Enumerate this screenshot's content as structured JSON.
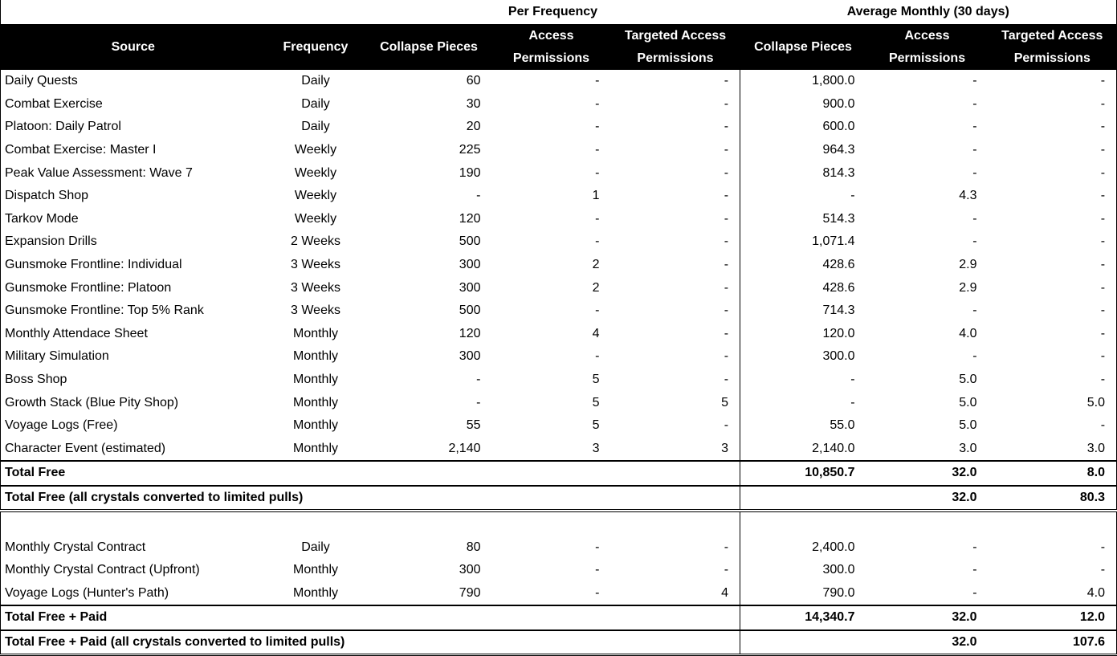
{
  "groups": {
    "per_frequency": "Per Frequency",
    "average_monthly": "Average Monthly (30 days)"
  },
  "headers": [
    "Source",
    "Frequency",
    "Collapse Pieces",
    "Access Permissions",
    "Targeted Access Permissions",
    "Collapse Pieces",
    "Access Permissions",
    "Targeted Access Permissions"
  ],
  "free_rows": [
    [
      "Daily Quests",
      "Daily",
      "60",
      "-",
      "-",
      "1,800.0",
      "-",
      "-"
    ],
    [
      "Combat Exercise",
      "Daily",
      "30",
      "-",
      "-",
      "900.0",
      "-",
      "-"
    ],
    [
      "Platoon: Daily Patrol",
      "Daily",
      "20",
      "-",
      "-",
      "600.0",
      "-",
      "-"
    ],
    [
      "Combat Exercise: Master I",
      "Weekly",
      "225",
      "-",
      "-",
      "964.3",
      "-",
      "-"
    ],
    [
      "Peak Value Assessment: Wave 7",
      "Weekly",
      "190",
      "-",
      "-",
      "814.3",
      "-",
      "-"
    ],
    [
      "Dispatch Shop",
      "Weekly",
      "-",
      "1",
      "-",
      "-",
      "4.3",
      "-"
    ],
    [
      "Tarkov Mode",
      "Weekly",
      "120",
      "-",
      "-",
      "514.3",
      "-",
      "-"
    ],
    [
      "Expansion Drills",
      "2 Weeks",
      "500",
      "-",
      "-",
      "1,071.4",
      "-",
      "-"
    ],
    [
      "Gunsmoke Frontline: Individual",
      "3 Weeks",
      "300",
      "2",
      "-",
      "428.6",
      "2.9",
      "-"
    ],
    [
      "Gunsmoke Frontline: Platoon",
      "3 Weeks",
      "300",
      "2",
      "-",
      "428.6",
      "2.9",
      "-"
    ],
    [
      "Gunsmoke Frontline: Top 5% Rank",
      "3 Weeks",
      "500",
      "-",
      "-",
      "714.3",
      "-",
      "-"
    ],
    [
      "Monthly Attendace Sheet",
      "Monthly",
      "120",
      "4",
      "-",
      "120.0",
      "4.0",
      "-"
    ],
    [
      "Military Simulation",
      "Monthly",
      "300",
      "-",
      "-",
      "300.0",
      "-",
      "-"
    ],
    [
      "Boss Shop",
      "Monthly",
      "-",
      "5",
      "-",
      "-",
      "5.0",
      "-"
    ],
    [
      "Growth Stack (Blue Pity Shop)",
      "Monthly",
      "-",
      "5",
      "5",
      "-",
      "5.0",
      "5.0"
    ],
    [
      "Voyage Logs (Free)",
      "Monthly",
      "55",
      "5",
      "-",
      "55.0",
      "5.0",
      "-"
    ],
    [
      "Character Event (estimated)",
      "Monthly",
      "2,140",
      "3",
      "3",
      "2,140.0",
      "3.0",
      "3.0"
    ]
  ],
  "free_totals": [
    [
      "Total Free",
      "",
      "",
      "",
      "",
      "10,850.7",
      "32.0",
      "8.0"
    ],
    [
      "Total Free (all crystals converted to limited pulls)",
      "",
      "",
      "",
      "",
      "",
      "32.0",
      "80.3"
    ]
  ],
  "paid_rows": [
    [
      "Monthly Crystal Contract",
      "Daily",
      "80",
      "-",
      "-",
      "2,400.0",
      "-",
      "-"
    ],
    [
      "Monthly Crystal Contract (Upfront)",
      "Monthly",
      "300",
      "-",
      "-",
      "300.0",
      "-",
      "-"
    ],
    [
      "Voyage Logs (Hunter's Path)",
      "Monthly",
      "790",
      "-",
      "4",
      "790.0",
      "-",
      "4.0"
    ]
  ],
  "paid_totals": [
    [
      "Total Free + Paid",
      "",
      "",
      "",
      "",
      "14,340.7",
      "32.0",
      "12.0"
    ],
    [
      "Total Free + Paid (all crystals converted to limited pulls)",
      "",
      "",
      "",
      "",
      "",
      "32.0",
      "107.6"
    ]
  ]
}
